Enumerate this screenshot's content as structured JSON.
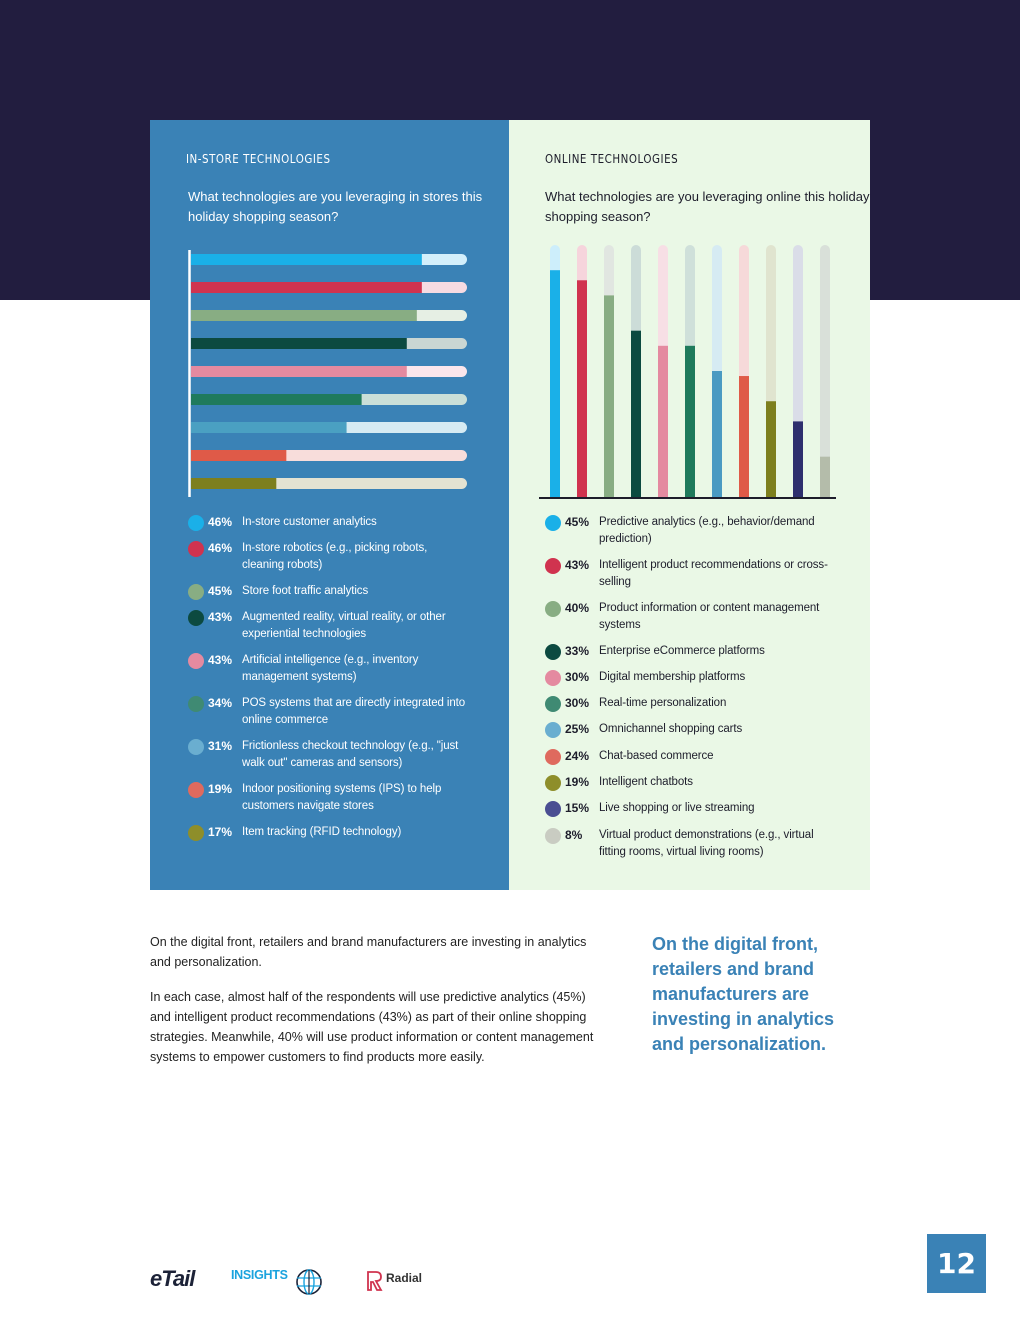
{
  "page": {
    "number": "12",
    "logos": [
      "eTail",
      "INSIGHTS",
      "Radial"
    ],
    "colors": {
      "header_band": "#221d3f",
      "in_store_panel": "#3a82b6",
      "online_panel": "#eaf8e6",
      "accent": "#3a82b6"
    }
  },
  "in_store": {
    "heading": "IN-STORE TECHNOLOGIES",
    "question": "What technologies are you leveraging in stores this holiday shopping season?"
  },
  "online": {
    "heading": "ONLINE TECHNOLOGIES",
    "question": "What technologies are you leveraging online this holiday shopping season?"
  },
  "chart_data": [
    {
      "type": "bar",
      "orientation": "horizontal",
      "title": "IN-STORE TECHNOLOGIES",
      "xlim": [
        0,
        55
      ],
      "categories": [
        "In-store customer analytics",
        "In-store robotics (e.g., picking robots, cleaning robots)",
        "Store foot traffic analytics",
        "Augmented reality, virtual reality, or other experiential technologies",
        "Artificial intelligence (e.g., inventory management systems)",
        "POS systems that are directly integrated into online commerce",
        "Frictionless checkout technology (e.g., \"just walk out\" cameras and sensors)",
        "Indoor positioning systems (IPS) to help customers navigate stores",
        "Item tracking (RFID technology)"
      ],
      "values": [
        46,
        46,
        45,
        43,
        43,
        34,
        31,
        19,
        17
      ],
      "labels": [
        "46%",
        "46%",
        "45%",
        "43%",
        "43%",
        "34%",
        "31%",
        "19%",
        "17%"
      ],
      "colors": [
        "#1ab0e8",
        "#d0334f",
        "#88ad83",
        "#0c4a40",
        "#e48aa0",
        "#1f7a5c",
        "#4aa0c2",
        "#df5a48",
        "#7d7f1e"
      ],
      "track_colors": [
        "#d3effb",
        "#f6dbe2",
        "#e6efe4",
        "#c9d6d3",
        "#fae6ec",
        "#cadfd8",
        "#d6ebf3",
        "#f8dddb",
        "#e4e3d2"
      ],
      "dot_colors": [
        "#1ab0e8",
        "#d0334f",
        "#88ad83",
        "#0c4a40",
        "#e48aa0",
        "#3f8a73",
        "#6aaed0",
        "#df6a5e",
        "#8e8e2a"
      ],
      "legend": "below"
    },
    {
      "type": "bar",
      "orientation": "vertical",
      "title": "ONLINE TECHNOLOGIES",
      "ylim": [
        0,
        50
      ],
      "categories": [
        "Predictive analytics (e.g., behavior/demand prediction)",
        "Intelligent product recommendations or cross-selling",
        "Product information or content management systems",
        "Enterprise eCommerce platforms",
        "Digital membership platforms",
        "Real-time personalization",
        "Omnichannel shopping carts",
        "Chat-based commerce",
        "Intelligent chatbots",
        "Live shopping or live streaming",
        "Virtual product demonstrations (e.g., virtual fitting rooms, virtual living rooms)"
      ],
      "values": [
        45,
        43,
        40,
        33,
        30,
        30,
        25,
        24,
        19,
        15,
        8
      ],
      "labels": [
        "45%",
        "43%",
        "40%",
        "33%",
        "30%",
        "30%",
        "25%",
        "24%",
        "19%",
        "15%",
        "8%"
      ],
      "colors": [
        "#1ab0e8",
        "#d0334f",
        "#88ad83",
        "#0c4a40",
        "#e48aa0",
        "#1f7a5c",
        "#4a9ac2",
        "#df5a48",
        "#7d7f1e",
        "#2e2f6e",
        "#b4bcaa"
      ],
      "track_colors": [
        "#cdeefb",
        "#f6d4dc",
        "#e1e6e1",
        "#ccdcd8",
        "#f7dfe5",
        "#cfe0da",
        "#d6ebf3",
        "#f6d9d9",
        "#e0e4cf",
        "#dadde8",
        "#d9e0d9"
      ],
      "dot_colors": [
        "#1ab0e8",
        "#d0334f",
        "#88ad83",
        "#0c4a40",
        "#e48aa0",
        "#3f8a73",
        "#6aaed0",
        "#df6a5e",
        "#8e8e2a",
        "#4a4e92",
        "#c9ccc2"
      ],
      "legend": "below"
    }
  ],
  "article": {
    "paragraph_1": "On the digital front, retailers and brand manufacturers are investing in analytics and personalization.",
    "paragraph_2": "In each case, almost half of the respondents will use predictive analytics (45%) and intelligent product recommendations (43%) as part of their online shopping strategies. Meanwhile, 40% will use product information or content management systems to empower customers to find products more easily.",
    "pull_quote": "On the digital front, retailers and brand manufacturers are investing in analytics and personalization."
  }
}
